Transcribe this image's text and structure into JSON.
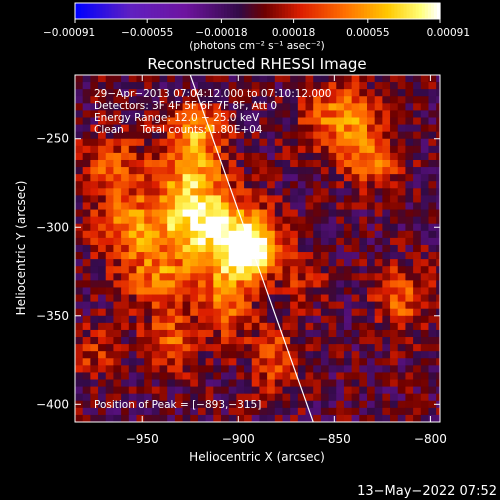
{
  "chart_data": {
    "type": "heatmap",
    "title": "Reconstructed RHESSI Image",
    "xlabel": "Heliocentric X (arcsec)",
    "ylabel": "Heliocentric Y (arcsec)",
    "xlim": [
      -985,
      -795
    ],
    "ylim": [
      -410,
      -214
    ],
    "x_ticks": [
      -950,
      -900,
      -850,
      -800
    ],
    "x_tick_labels": [
      "−950",
      "−900",
      "−850",
      "−800"
    ],
    "y_ticks": [
      -250,
      -300,
      -350,
      -400
    ],
    "y_tick_labels": [
      "−250",
      "−300",
      "−350",
      "−400"
    ],
    "colorbar": {
      "min": -0.00091,
      "max": 0.00091,
      "ticks": [
        -0.00091,
        -0.00055,
        -0.00018,
        0.00018,
        0.00055,
        0.00091
      ],
      "tick_labels": [
        "−0.00091",
        "−0.00055",
        "−0.00018",
        "0.00018",
        "0.00055",
        "0.00091"
      ],
      "unit_label": "(photons cm⁻² s⁻¹ asec⁻²)"
    },
    "annotations": [
      "29−Apr−2013 07:04:12.000 to 07:10:12.000",
      "Detectors: 3F 4F 5F 6F 7F 8F, Att 0",
      "Energy Range: 12.0 − 25.0 keV",
      "Clean     Total counts: 1.80E+04"
    ],
    "peak_label": "Position of Peak = [−893,−315]",
    "peak": [
      -893,
      -315
    ],
    "limb_line": [
      [
        -925,
        -214
      ],
      [
        -861,
        -410
      ]
    ],
    "sources": [
      {
        "x": -893,
        "y": -315,
        "amp": 1.0,
        "sx": 10,
        "sy": 9
      },
      {
        "x": -910,
        "y": -300,
        "amp": 0.75,
        "sx": 18,
        "sy": 14
      },
      {
        "x": -925,
        "y": -275,
        "amp": 0.6,
        "sx": 12,
        "sy": 20
      },
      {
        "x": -920,
        "y": -245,
        "amp": 0.45,
        "sx": 10,
        "sy": 10
      },
      {
        "x": -955,
        "y": -300,
        "amp": 0.5,
        "sx": 15,
        "sy": 14
      },
      {
        "x": -940,
        "y": -330,
        "amp": 0.45,
        "sx": 14,
        "sy": 12
      },
      {
        "x": -965,
        "y": -265,
        "amp": 0.4,
        "sx": 12,
        "sy": 12
      },
      {
        "x": -905,
        "y": -340,
        "amp": 0.5,
        "sx": 9,
        "sy": 16
      },
      {
        "x": -935,
        "y": -365,
        "amp": 0.4,
        "sx": 10,
        "sy": 12
      },
      {
        "x": -880,
        "y": -375,
        "amp": 0.4,
        "sx": 9,
        "sy": 14
      },
      {
        "x": -845,
        "y": -240,
        "amp": 0.55,
        "sx": 15,
        "sy": 14
      },
      {
        "x": -830,
        "y": -265,
        "amp": 0.4,
        "sx": 10,
        "sy": 10
      },
      {
        "x": -815,
        "y": -340,
        "amp": 0.4,
        "sx": 10,
        "sy": 14
      },
      {
        "x": -975,
        "y": -370,
        "amp": 0.3,
        "sx": 10,
        "sy": 10
      },
      {
        "x": -865,
        "y": -330,
        "amp": 0.25,
        "sx": 10,
        "sy": 10
      }
    ]
  },
  "footer": {
    "timestamp": "13−May−2022 07:52"
  },
  "colors": {
    "background": "#000000",
    "foreground": "#ffffff",
    "colormap": [
      "#0000ff",
      "#6020c0",
      "#7a0aa0",
      "#3a0a60",
      "#800000",
      "#e02000",
      "#ff6000",
      "#ffc000",
      "#ffff60",
      "#ffffff"
    ]
  }
}
